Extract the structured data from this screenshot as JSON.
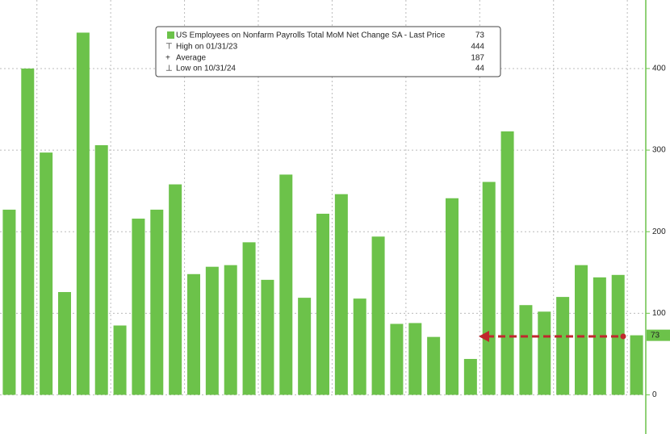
{
  "chart_data": {
    "type": "bar",
    "categories": [
      null,
      null,
      null,
      null,
      null,
      null,
      null,
      null,
      null,
      null,
      null,
      null,
      null,
      null,
      null,
      null,
      null,
      null,
      null,
      null,
      null,
      null,
      null,
      null,
      null,
      null,
      null,
      null,
      null,
      null,
      null,
      null,
      null,
      null,
      null
    ],
    "values": [
      227,
      400,
      297,
      126,
      444,
      306,
      85,
      216,
      227,
      258,
      148,
      157,
      159,
      187,
      141,
      270,
      119,
      222,
      246,
      118,
      194,
      87,
      88,
      71,
      241,
      44,
      261,
      323,
      110,
      102,
      120,
      159,
      144,
      147,
      73
    ],
    "color": "#6cc24a",
    "ylim": [
      -48,
      484
    ],
    "yticks": [
      0,
      100,
      200,
      300,
      400
    ],
    "grid": true,
    "legend": {
      "title": "US Employees on Nonfarm Payrolls Total MoM Net Change SA - Last Price",
      "last_price": 73,
      "rows": [
        {
          "label": "High on 01/31/23",
          "value": 444
        },
        {
          "label": "Average",
          "value": 187
        },
        {
          "label": "Low on 10/31/24",
          "value": 44
        }
      ]
    },
    "last_label": 73
  }
}
